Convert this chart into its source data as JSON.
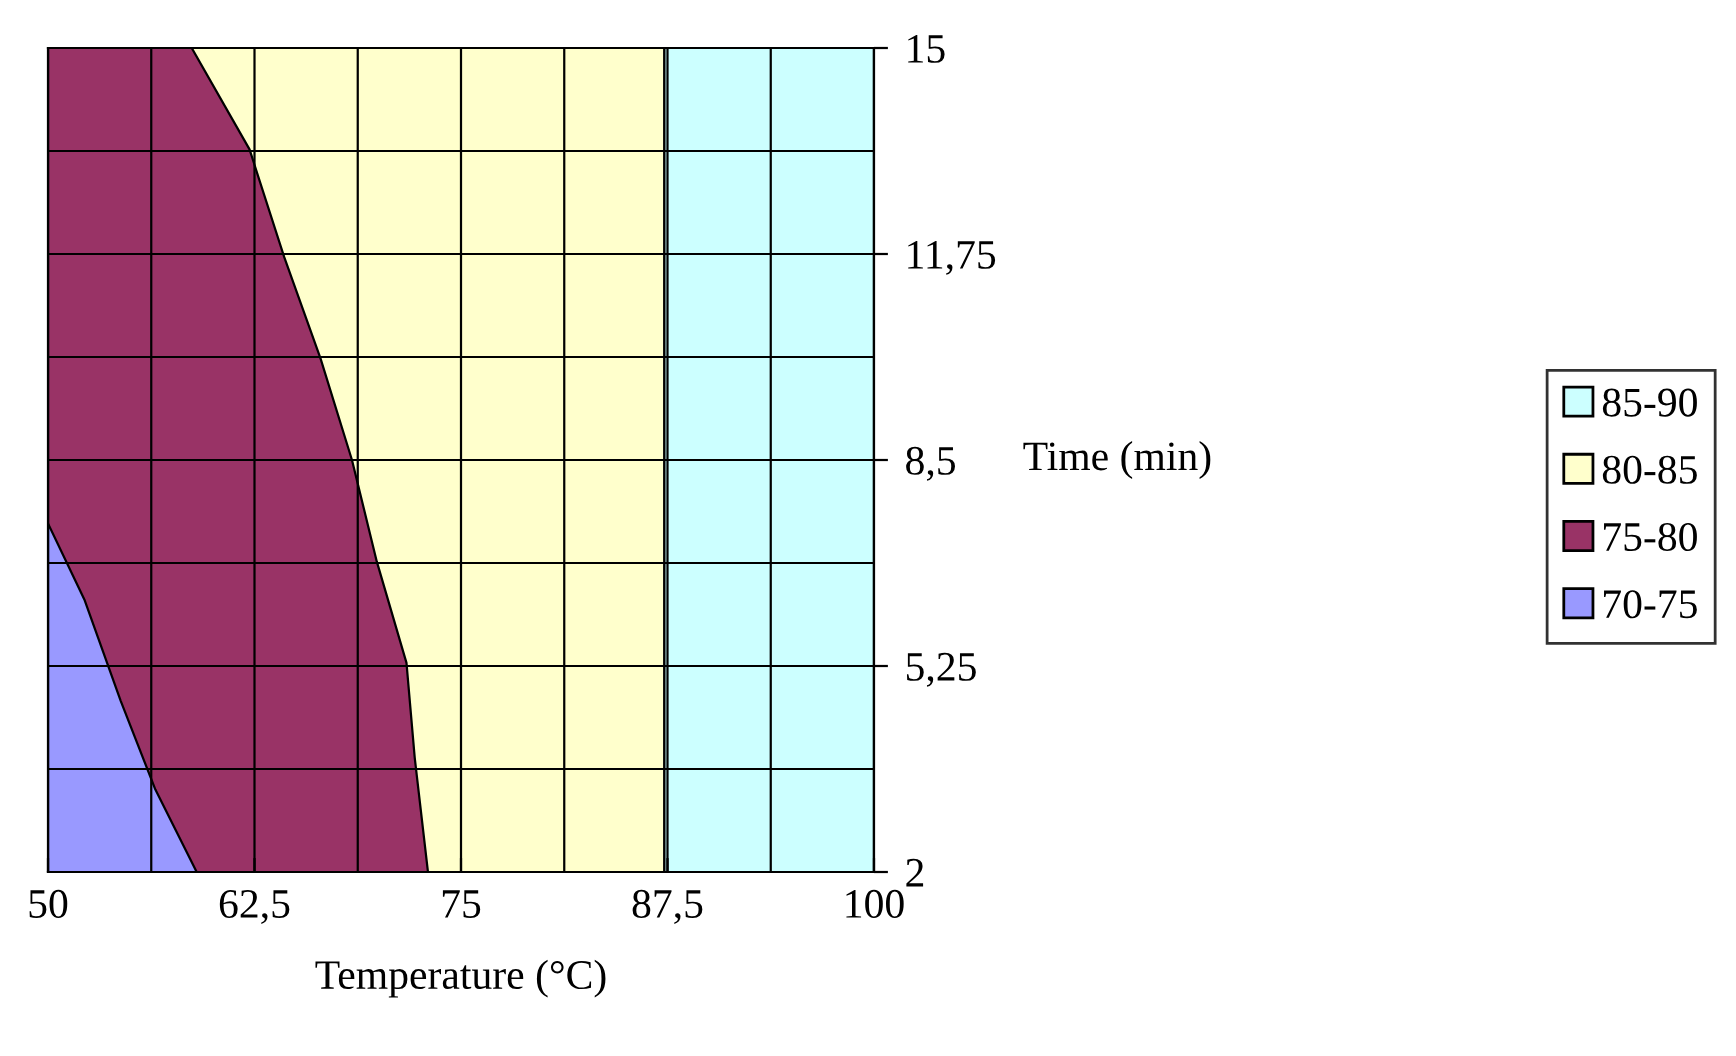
{
  "chart_data": {
    "type": "area",
    "xlabel": "Temperature (°C)",
    "ylabel": "Time (min)",
    "xlim": [
      50,
      100
    ],
    "xticks": [
      50,
      {
        "value": 62.5,
        "label": "62,5"
      },
      75,
      {
        "value": 87.5,
        "label": "87,5"
      },
      100
    ],
    "ylim": [
      2,
      15
    ],
    "yticks": [
      2,
      {
        "value": 5.25,
        "label": "5,25"
      },
      {
        "value": 8.5,
        "label": "8,5"
      },
      {
        "value": 11.75,
        "label": "11,75"
      },
      15
    ],
    "grid": true,
    "legend": "right",
    "series": [
      {
        "name": "85-90",
        "color": "#ccffff",
        "x": [
          87.3,
          100
        ],
        "values": [
          15,
          15
        ]
      },
      {
        "name": "80-85",
        "color": "#ffffcc",
        "x": [
          50,
          87.3
        ],
        "values": [
          15,
          15
        ]
      },
      {
        "name": "75-80",
        "color": "#993366",
        "x": [
          50,
          58.7,
          62.2,
          64.3,
          66.5,
          68.4,
          69.9,
          71.7,
          72.2,
          73.0
        ],
        "values": [
          15,
          15,
          13.4,
          11.7,
          10.1,
          8.5,
          6.9,
          5.3,
          3.8,
          2
        ]
      },
      {
        "name": "70-75",
        "color": "#9999ff",
        "x": [
          50,
          52.2,
          54.4,
          56.5,
          59.0
        ],
        "values": [
          7.5,
          6.3,
          4.7,
          3.3,
          2
        ]
      }
    ]
  }
}
